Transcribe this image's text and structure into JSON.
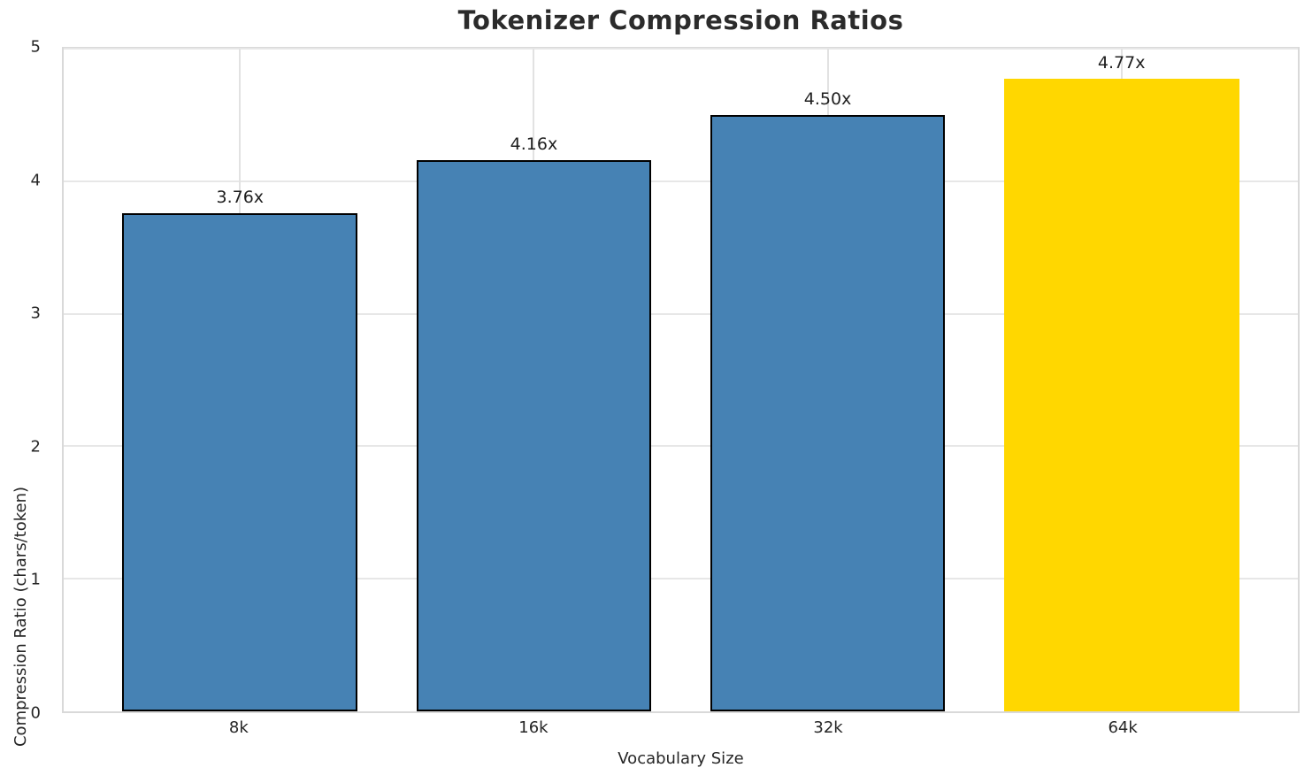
{
  "chart_data": {
    "type": "bar",
    "title": "Tokenizer Compression Ratios",
    "xlabel": "Vocabulary Size",
    "ylabel": "Compression Ratio (chars/token)",
    "categories": [
      "8k",
      "16k",
      "32k",
      "64k"
    ],
    "values": [
      3.76,
      4.16,
      4.5,
      4.77
    ],
    "bar_labels": [
      "3.76x",
      "4.16x",
      "4.50x",
      "4.77x"
    ],
    "bar_colors": [
      "#4682B4",
      "#4682B4",
      "#4682B4",
      "#FFD700"
    ],
    "bar_edge_colors": [
      "#000000",
      "#000000",
      "#000000",
      "none"
    ],
    "ylim": [
      0,
      5
    ],
    "yticks": [
      0,
      1,
      2,
      3,
      4,
      5
    ],
    "xlim": [
      -0.6,
      3.6
    ],
    "bar_width": 0.8,
    "grid": true,
    "legend": "none",
    "colors": {
      "background": "#ffffff",
      "spine": "#d9d9d9",
      "gridline": "#e7e7e7",
      "text": "#262626",
      "title_text": "#2b2b2b"
    }
  }
}
